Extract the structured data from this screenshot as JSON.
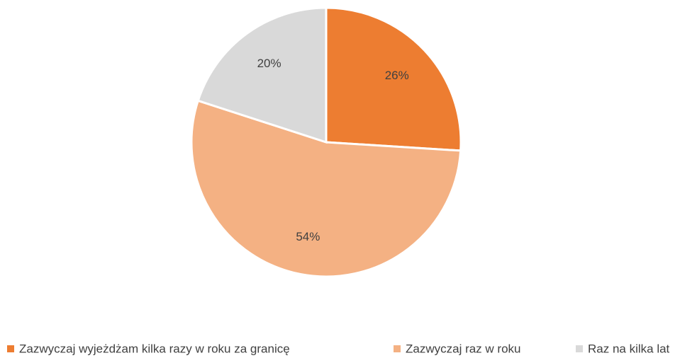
{
  "chart_data": {
    "type": "pie",
    "categories": [
      "Zazwyczaj wyjeżdżam kilka razy w roku za granicę",
      "Zazwyczaj raz w roku",
      "Raz na kilka lat"
    ],
    "values": [
      26,
      54,
      20
    ],
    "value_labels": [
      "26%",
      "54%",
      "20%"
    ],
    "colors": [
      "#ED7D31",
      "#F4B183",
      "#D9D9D9"
    ],
    "legend": "bottom"
  }
}
